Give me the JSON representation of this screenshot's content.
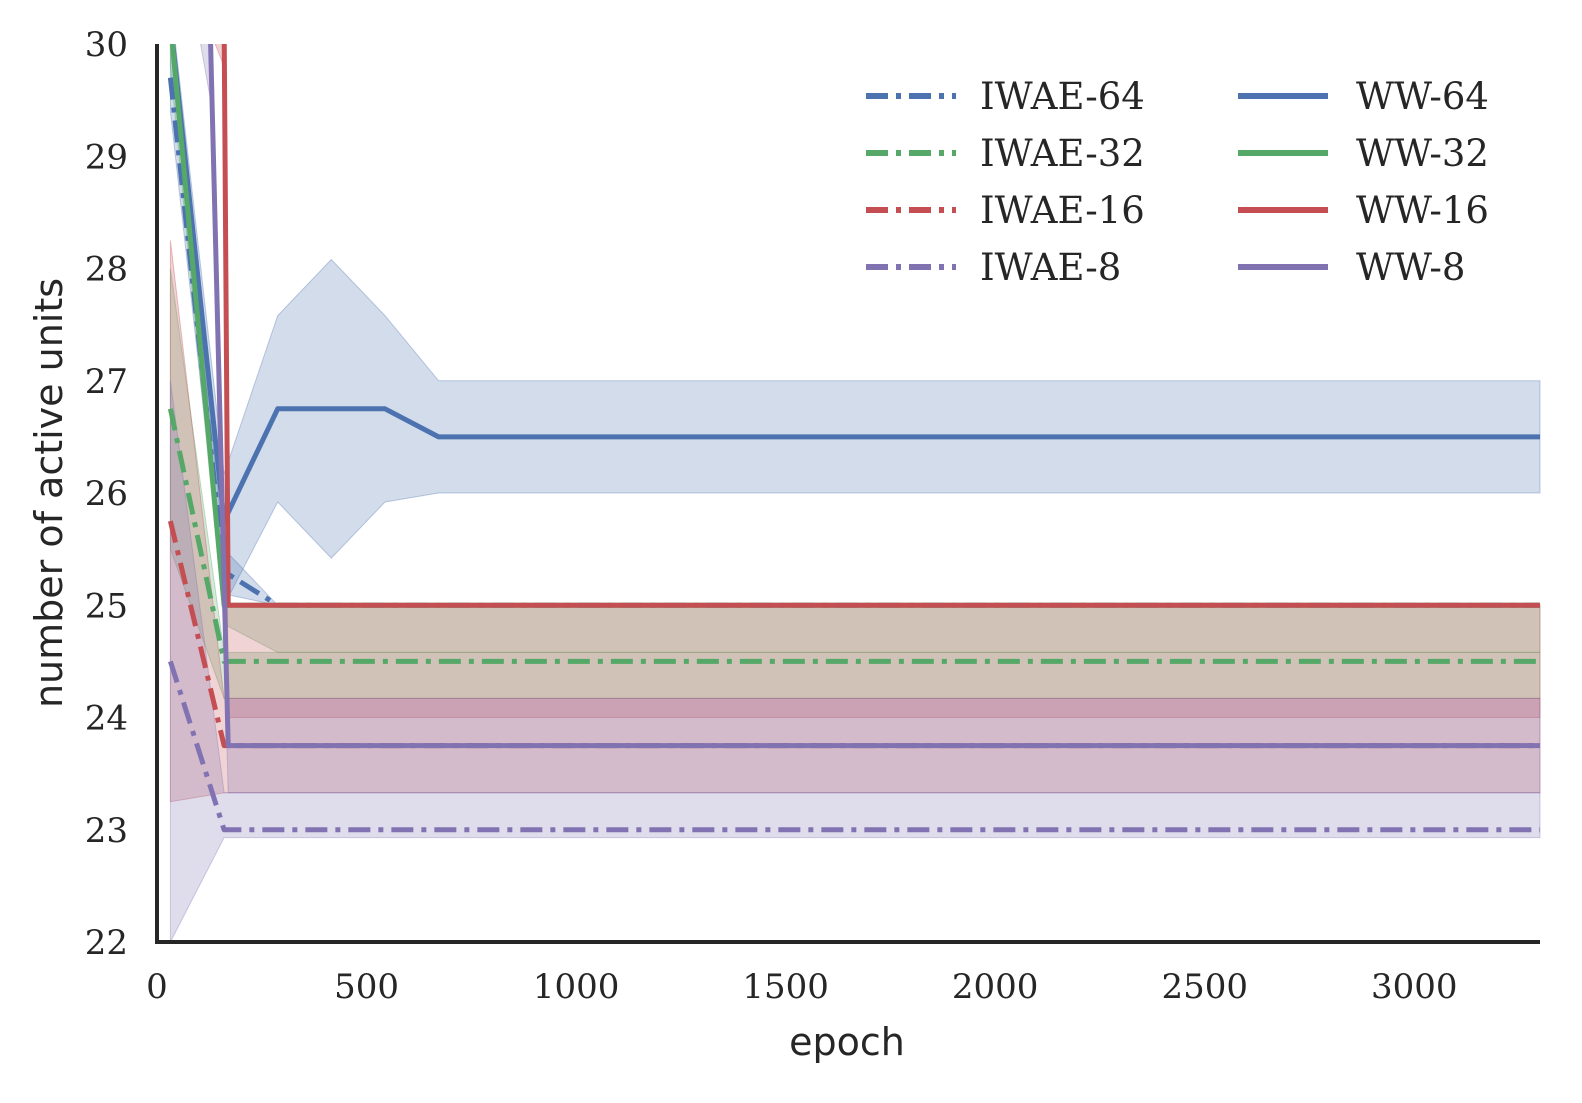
{
  "chart_data": {
    "type": "line",
    "xlabel": "epoch",
    "ylabel": "number of active units",
    "xlim": [
      0,
      3300
    ],
    "ylim": [
      22,
      30
    ],
    "xticks": [
      0,
      500,
      1000,
      1500,
      2000,
      2500,
      3000
    ],
    "yticks": [
      22,
      23,
      24,
      25,
      26,
      27,
      28,
      29,
      30
    ],
    "grid": false,
    "legend": {
      "placement": "top-right",
      "columns": 2
    },
    "colors": {
      "blue": "#4c72b0",
      "green": "#55a868",
      "red": "#c44e52",
      "purple": "#8172b2"
    },
    "series": [
      {
        "name": "IWAE-64",
        "color": "#4c72b0",
        "style": "dashdot",
        "x": [
          32,
          160,
          288,
          416,
          544,
          672,
          800,
          3300
        ],
        "y": [
          29.7,
          25.3,
          25.0,
          25.0,
          25.0,
          25.0,
          25.0,
          25.0
        ],
        "band_low": [
          29.4,
          25.1,
          25.0,
          25.0,
          25.0,
          25.0,
          25.0,
          25.0
        ],
        "band_high": [
          30.0,
          25.5,
          25.0,
          25.0,
          25.0,
          25.0,
          25.0,
          25.0
        ]
      },
      {
        "name": "IWAE-32",
        "color": "#55a868",
        "style": "dashdot",
        "x": [
          32,
          160,
          288,
          3300
        ],
        "y": [
          26.75,
          24.5,
          24.5,
          24.5
        ],
        "band_low": [
          25.5,
          24.17,
          24.17,
          24.17
        ],
        "band_high": [
          28.0,
          24.58,
          24.58,
          24.58
        ]
      },
      {
        "name": "IWAE-16",
        "color": "#c44e52",
        "style": "dashdot",
        "x": [
          32,
          160,
          288,
          3300
        ],
        "y": [
          25.75,
          23.75,
          23.75,
          23.75
        ],
        "band_low": [
          23.25,
          23.33,
          23.33,
          23.33
        ],
        "band_high": [
          28.25,
          24.17,
          24.17,
          24.17
        ]
      },
      {
        "name": "IWAE-8",
        "color": "#8172b2",
        "style": "dashdot",
        "x": [
          32,
          160,
          288,
          3300
        ],
        "y": [
          24.5,
          23.0,
          23.0,
          23.0
        ],
        "band_low": [
          22.0,
          22.93,
          22.93,
          22.93
        ],
        "band_high": [
          27.0,
          23.33,
          23.33,
          23.33
        ]
      },
      {
        "name": "WW-64",
        "color": "#4c72b0",
        "style": "solid",
        "x": [
          32,
          160,
          288,
          416,
          544,
          672,
          800,
          3300
        ],
        "y": [
          30.2,
          25.75,
          26.75,
          26.75,
          26.75,
          26.5,
          26.5,
          26.5
        ],
        "band_low": [
          30.0,
          25.0,
          25.92,
          25.42,
          25.92,
          26.0,
          26.0,
          26.0
        ],
        "band_high": [
          30.4,
          26.17,
          27.58,
          28.08,
          27.58,
          27.0,
          27.0,
          27.0
        ]
      },
      {
        "name": "WW-32",
        "color": "#55a868",
        "style": "solid",
        "x": [
          32,
          160,
          288,
          3300
        ],
        "y": [
          30.2,
          25.0,
          25.0,
          25.0
        ],
        "band_low": [
          29.8,
          24.83,
          24.58,
          24.58
        ],
        "band_high": [
          30.4,
          25.0,
          25.0,
          25.0
        ]
      },
      {
        "name": "WW-16",
        "color": "#c44e52",
        "style": "solid",
        "x": [
          32,
          160,
          170,
          288,
          3300
        ],
        "y": [
          31.5,
          30.2,
          25.0,
          25.0,
          25.0
        ],
        "band_low": [
          31.0,
          29.8,
          24.0,
          24.0,
          24.0
        ],
        "band_high": [
          32.0,
          30.4,
          25.0,
          25.0,
          25.0
        ]
      },
      {
        "name": "WW-8",
        "color": "#8172b2",
        "style": "solid",
        "x": [
          32,
          128,
          170,
          288,
          3300
        ],
        "y": [
          32.0,
          30.0,
          23.75,
          23.75,
          23.75
        ],
        "band_low": [
          31.5,
          29.5,
          23.33,
          23.33,
          23.33
        ],
        "band_high": [
          32.5,
          30.5,
          24.17,
          24.17,
          24.17
        ]
      }
    ]
  }
}
